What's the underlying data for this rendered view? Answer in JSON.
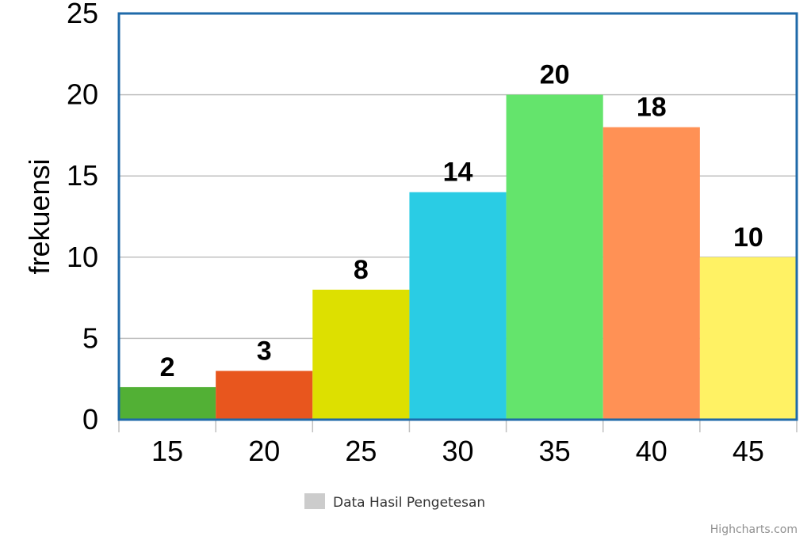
{
  "chart_data": {
    "type": "bar",
    "title": "",
    "xlabel": "",
    "ylabel": "frekuensi",
    "categories": [
      "15",
      "20",
      "25",
      "30",
      "35",
      "40",
      "45"
    ],
    "series": [
      {
        "name": "Data Hasil Pengetesan",
        "values": [
          2,
          3,
          8,
          14,
          20,
          18,
          10
        ]
      }
    ],
    "bar_colors": [
      "#52b035",
      "#e8561e",
      "#dde000",
      "#2acce4",
      "#64e46c",
      "#ff9155",
      "#fff264"
    ],
    "ylim": [
      0,
      25
    ],
    "yticks": [
      0,
      5,
      10,
      15,
      20,
      25
    ],
    "grid": true,
    "data_labels": true,
    "legend_position": "bottom-center",
    "legend_color": "#cccccc",
    "plot_border_color": "#1f6aa9",
    "gridline_color": "#c0c0c0"
  },
  "credits": "Highcharts.com"
}
